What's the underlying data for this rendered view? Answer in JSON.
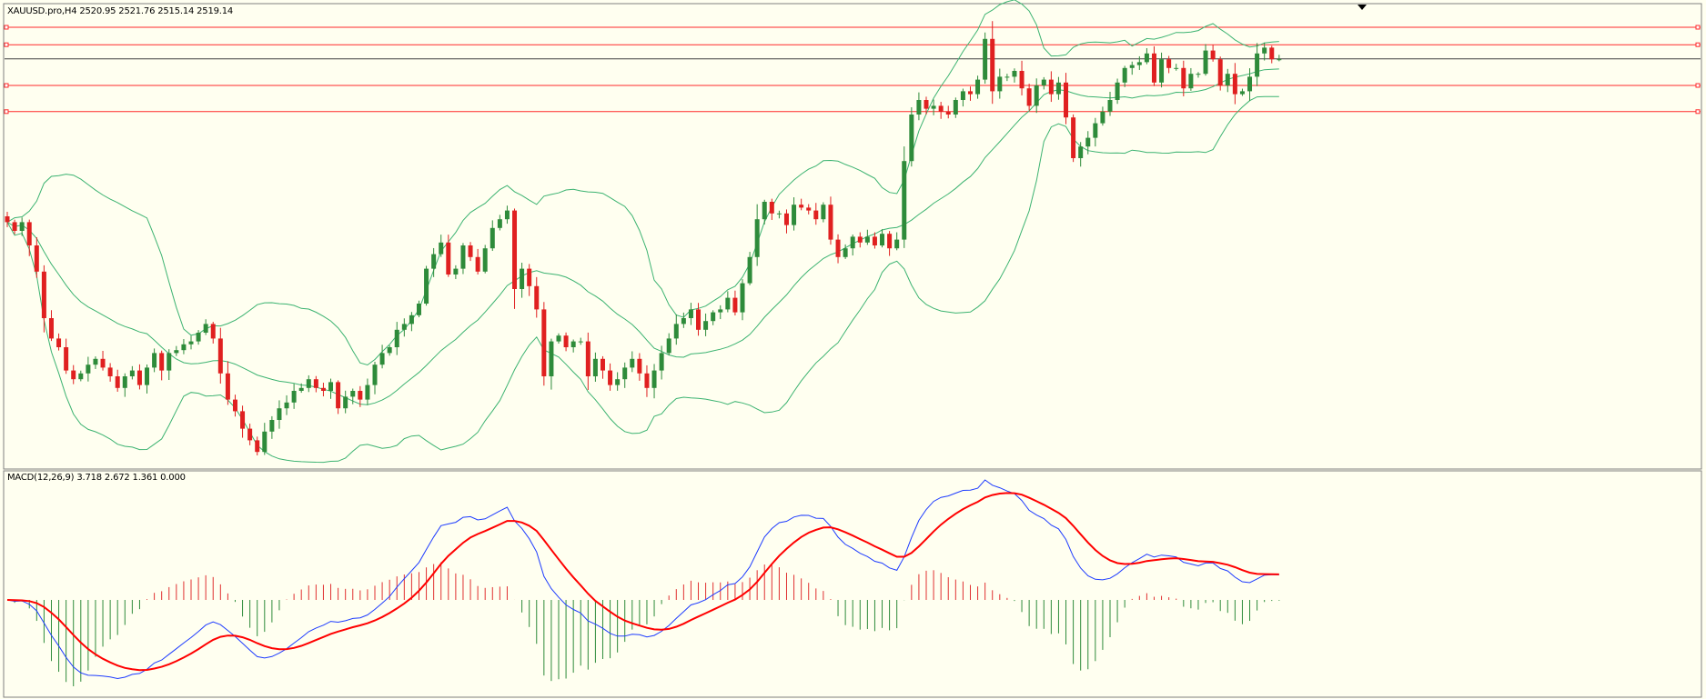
{
  "main_panel": {
    "title": "XAUUSD.pro,H4  2520.95 2521.76 2515.14 2519.14"
  },
  "macd_panel": {
    "title": "MACD(12,26,9) 3.718 2.672 1.361 0.000"
  },
  "colors": {
    "background": "#fffff0",
    "bull_candle": "#2e8b3a",
    "bear_candle": "#e02020",
    "bollinger": "#3cb371",
    "level_line": "#ff2a2a",
    "current_price_line": "#404040",
    "macd_line": "#1e3cff",
    "signal_line": "#ff0000",
    "hist_positive": "#e03030",
    "hist_negative": "#2e8b3a",
    "frame": "#808080"
  },
  "chart_data": [
    {
      "type": "candlestick",
      "symbol": "XAUUSD.pro",
      "timeframe": "H4",
      "last_ohlc": {
        "open": 2520.95,
        "high": 2521.76,
        "low": 2515.14,
        "close": 2519.14
      },
      "ylim": [
        2380,
        2535
      ],
      "approximate": true,
      "closes": [
        2463,
        2460,
        2463,
        2455,
        2446,
        2430,
        2423,
        2420,
        2412,
        2409,
        2411,
        2414,
        2416,
        2413,
        2410,
        2406,
        2410,
        2412,
        2407,
        2413,
        2418,
        2412,
        2418,
        2419,
        2421,
        2422,
        2425,
        2428,
        2423,
        2411,
        2402,
        2398,
        2392,
        2388,
        2384,
        2391,
        2395,
        2399,
        2401,
        2405,
        2406,
        2409,
        2406,
        2405,
        2408,
        2399,
        2403,
        2405,
        2402,
        2407,
        2414,
        2418,
        2420,
        2426,
        2428,
        2431,
        2435,
        2447,
        2452,
        2456,
        2445,
        2447,
        2455,
        2451,
        2446,
        2454,
        2461,
        2464,
        2467,
        2440,
        2447,
        2441,
        2433,
        2410,
        2422,
        2424,
        2420,
        2422,
        2422,
        2410,
        2416,
        2412,
        2407,
        2409,
        2413,
        2416,
        2411,
        2406,
        2412,
        2418,
        2423,
        2428,
        2430,
        2433,
        2426,
        2429,
        2432,
        2433,
        2437,
        2432,
        2442,
        2451,
        2464,
        2470,
        2466,
        2466,
        2462,
        2469,
        2468,
        2467,
        2464,
        2469,
        2457,
        2451,
        2454,
        2458,
        2456,
        2458,
        2455,
        2459,
        2454,
        2457,
        2484,
        2500,
        2505,
        2502,
        2503,
        2501,
        2500,
        2505,
        2508,
        2507,
        2512,
        2526,
        2508,
        2513,
        2513,
        2515,
        2509,
        2503,
        2510,
        2512,
        2507,
        2511,
        2499,
        2485,
        2489,
        2492,
        2497,
        2501,
        2505,
        2511,
        2516,
        2517,
        2518,
        2521,
        2511,
        2519,
        2516,
        2516,
        2509,
        2514,
        2514,
        2522,
        2519,
        2510,
        2514,
        2507,
        2508,
        2513,
        2521,
        2523,
        2519,
        2519
      ],
      "bollinger": {
        "period": 20,
        "deviations": 2
      }
    },
    {
      "type": "line",
      "title": "MACD(12,26,9)",
      "series": [
        {
          "name": "MACD",
          "last": 3.718
        },
        {
          "name": "Signal",
          "last": 2.672
        }
      ],
      "histogram_last": 1.361,
      "zero_level": 0.0
    }
  ]
}
